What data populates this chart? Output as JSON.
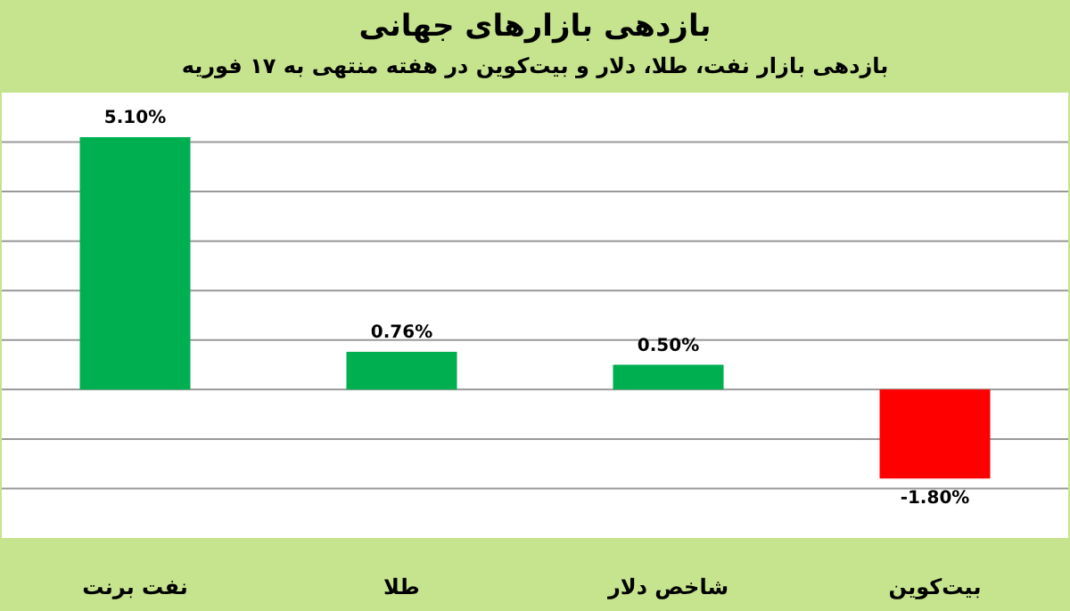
{
  "chart_data": {
    "type": "bar",
    "title": "بازدهی بازارهای جهانی",
    "subtitle": "بازدهی بازار نفت، طلا، دلار و بیت‌کوین در هفته منتهی به ۱۷ فوریه",
    "categories": [
      "نفت برنت",
      "طلا",
      "شاخص دلار",
      "بیت‌کوین"
    ],
    "values": [
      5.1,
      0.76,
      0.5,
      -1.8
    ],
    "colors": [
      "#00b050",
      "#00b050",
      "#00b050",
      "#ff0000"
    ],
    "value_labels": [
      "5.10%",
      "0.76%",
      "0.50%",
      "-1.80%"
    ],
    "ylim": [
      -3,
      6
    ],
    "yticks": [
      {
        "value": -2,
        "label": null
      },
      {
        "value": -1,
        "label": null
      },
      {
        "value": 0,
        "label": null
      },
      {
        "value": 1,
        "label": null
      },
      {
        "value": 2,
        "label": null
      },
      {
        "value": 3,
        "label": null
      },
      {
        "value": 4,
        "label": null
      },
      {
        "value": 5,
        "label": null
      }
    ],
    "grid": "y",
    "tick_labels": "x"
  }
}
